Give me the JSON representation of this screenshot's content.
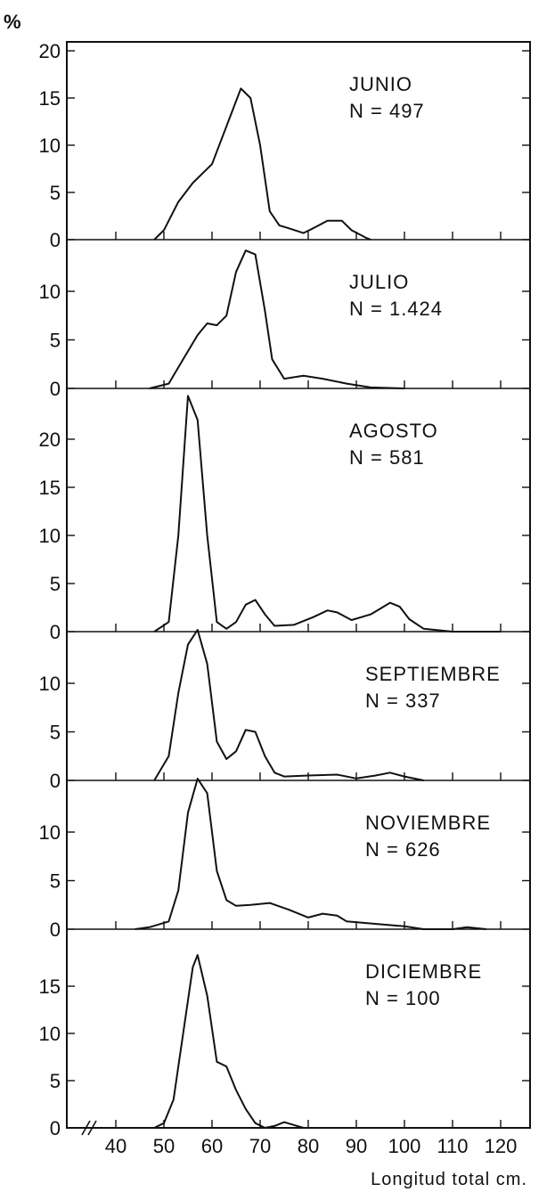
{
  "chart_data": {
    "type": "line",
    "y_unit_label": "%",
    "xlabel": "Longitud total cm.",
    "x_ticks": [
      40,
      50,
      60,
      70,
      80,
      90,
      100,
      110,
      120
    ],
    "x_range": [
      33,
      128
    ],
    "line_color": "#111111",
    "panels": [
      {
        "month": "JUNIO",
        "n_label": "N = 497",
        "ylim": [
          0,
          20
        ],
        "y_ticks": [
          0,
          5,
          10,
          15,
          20
        ],
        "points": [
          [
            48,
            0
          ],
          [
            50,
            1
          ],
          [
            53,
            4
          ],
          [
            56,
            6
          ],
          [
            60,
            8
          ],
          [
            63,
            12
          ],
          [
            66,
            16
          ],
          [
            68,
            15
          ],
          [
            70,
            10
          ],
          [
            72,
            3
          ],
          [
            74,
            1.5
          ],
          [
            76,
            1.2
          ],
          [
            79,
            0.7
          ],
          [
            81,
            1.2
          ],
          [
            84,
            2
          ],
          [
            87,
            2
          ],
          [
            89,
            1
          ],
          [
            92,
            0.2
          ],
          [
            93,
            0
          ]
        ]
      },
      {
        "month": "JULIO",
        "n_label": "N = 1.424",
        "ylim": [
          0,
          15
        ],
        "y_ticks": [
          0,
          5,
          10
        ],
        "points": [
          [
            47,
            0
          ],
          [
            51,
            0.5
          ],
          [
            54,
            3
          ],
          [
            57,
            5.5
          ],
          [
            59,
            6.7
          ],
          [
            61,
            6.5
          ],
          [
            63,
            7.5
          ],
          [
            65,
            12
          ],
          [
            67,
            14.2
          ],
          [
            69,
            13.8
          ],
          [
            71,
            8
          ],
          [
            72.5,
            3
          ],
          [
            75,
            1
          ],
          [
            79,
            1.3
          ],
          [
            83,
            1
          ],
          [
            88,
            0.5
          ],
          [
            93,
            0.1
          ],
          [
            100,
            0
          ]
        ]
      },
      {
        "month": "AGOSTO",
        "n_label": "N = 581",
        "ylim": [
          0,
          25
        ],
        "y_ticks": [
          0,
          5,
          10,
          15,
          20
        ],
        "points": [
          [
            48,
            0
          ],
          [
            51,
            1
          ],
          [
            53,
            10
          ],
          [
            55,
            24.5
          ],
          [
            57,
            22
          ],
          [
            59,
            10
          ],
          [
            61,
            1
          ],
          [
            63,
            0.3
          ],
          [
            65,
            1
          ],
          [
            67,
            2.8
          ],
          [
            69,
            3.3
          ],
          [
            71,
            1.8
          ],
          [
            73,
            0.6
          ],
          [
            77,
            0.7
          ],
          [
            81,
            1.5
          ],
          [
            84,
            2.2
          ],
          [
            86,
            2
          ],
          [
            89,
            1.2
          ],
          [
            93,
            1.8
          ],
          [
            97,
            3
          ],
          [
            99,
            2.6
          ],
          [
            101,
            1.3
          ],
          [
            104,
            0.3
          ],
          [
            110,
            0
          ],
          [
            120,
            0
          ]
        ]
      },
      {
        "month": "SEPTIEMBRE",
        "n_label": "N = 337",
        "ylim": [
          0,
          15
        ],
        "y_ticks": [
          0,
          5,
          10
        ],
        "points": [
          [
            48,
            0
          ],
          [
            51,
            2.5
          ],
          [
            53,
            9
          ],
          [
            55,
            14
          ],
          [
            57,
            15.5
          ],
          [
            59,
            12
          ],
          [
            61,
            4
          ],
          [
            63,
            2.2
          ],
          [
            65,
            3
          ],
          [
            67,
            5.2
          ],
          [
            69,
            5
          ],
          [
            71,
            2.5
          ],
          [
            73,
            0.8
          ],
          [
            75,
            0.4
          ],
          [
            80,
            0.5
          ],
          [
            86,
            0.6
          ],
          [
            90,
            0.2
          ],
          [
            94,
            0.5
          ],
          [
            97,
            0.8
          ],
          [
            100,
            0.4
          ],
          [
            104,
            0
          ]
        ]
      },
      {
        "month": "NOVIEMBRE",
        "n_label": "N = 626",
        "ylim": [
          0,
          15
        ],
        "y_ticks": [
          0,
          5,
          10
        ],
        "points": [
          [
            44,
            0
          ],
          [
            47,
            0.2
          ],
          [
            51,
            0.8
          ],
          [
            53,
            4
          ],
          [
            55,
            12
          ],
          [
            57,
            15.5
          ],
          [
            59,
            14
          ],
          [
            61,
            6
          ],
          [
            63,
            3
          ],
          [
            65,
            2.4
          ],
          [
            68,
            2.5
          ],
          [
            72,
            2.7
          ],
          [
            76,
            2
          ],
          [
            80,
            1.2
          ],
          [
            83,
            1.6
          ],
          [
            86,
            1.4
          ],
          [
            88,
            0.8
          ],
          [
            95,
            0.5
          ],
          [
            100,
            0.3
          ],
          [
            104,
            0
          ],
          [
            110,
            0
          ],
          [
            113,
            0.2
          ],
          [
            117,
            0
          ]
        ]
      },
      {
        "month": "DICIEMBRE",
        "n_label": "N = 100",
        "ylim": [
          0,
          20
        ],
        "y_ticks": [
          0,
          5,
          10,
          15
        ],
        "points": [
          [
            48,
            0
          ],
          [
            50,
            0.5
          ],
          [
            52,
            3
          ],
          [
            54,
            10
          ],
          [
            56,
            17
          ],
          [
            57,
            18.3
          ],
          [
            59,
            14
          ],
          [
            61,
            7
          ],
          [
            63,
            6.5
          ],
          [
            65,
            4
          ],
          [
            67,
            2
          ],
          [
            69,
            0.5
          ],
          [
            71,
            0
          ],
          [
            73,
            0.2
          ],
          [
            75,
            0.6
          ],
          [
            77,
            0.3
          ],
          [
            79,
            0
          ]
        ]
      }
    ]
  }
}
